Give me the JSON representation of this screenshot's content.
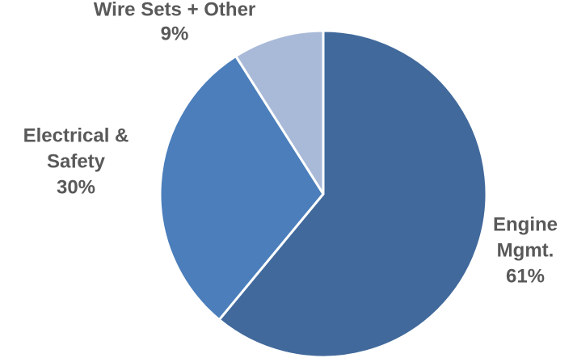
{
  "chart_data": {
    "type": "pie",
    "title": "",
    "start_angle_deg": 0,
    "direction": "clockwise",
    "slices": [
      {
        "label_lines": [
          "Engine",
          "Mgmt."
        ],
        "pct_text": "61%",
        "value": 61,
        "color": "#41699b"
      },
      {
        "label_lines": [
          "Electrical &",
          "Safety"
        ],
        "pct_text": "30%",
        "value": 30,
        "color": "#4b7ebb"
      },
      {
        "label_lines": [
          "Wire Sets + Other"
        ],
        "pct_text": "9%",
        "value": 9,
        "color": "#a9bad8"
      }
    ],
    "label_color": "#595959",
    "legend": "none"
  }
}
